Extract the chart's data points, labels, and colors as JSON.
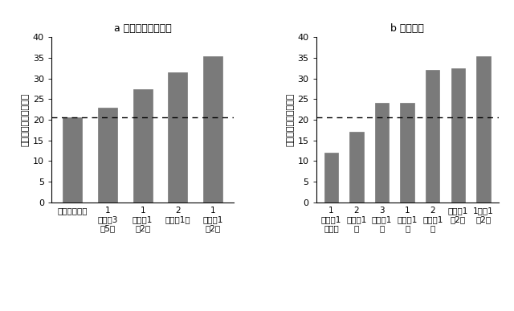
{
  "chart_a": {
    "title": "a トレーニング頻度",
    "values": [
      20.5,
      23.0,
      27.5,
      31.5,
      35.5
    ],
    "labels": [
      "ほとんど毎日",
      "1\n週間に3\n～5回",
      "1\n週間に1\n～2回",
      "2\n週間に1回",
      "1\nカ月に1\n～2回"
    ]
  },
  "chart_b": {
    "title": "b 登山頻度",
    "values": [
      12.0,
      17.0,
      24.0,
      24.0,
      32.0,
      32.5,
      35.5
    ],
    "labels": [
      "1\n週間に1\n回以上",
      "2\n週間に1\n回",
      "3\n週間に1\n回",
      "1\nカ月に1\n回",
      "2\nカ月に1\n回",
      "半年に1\n～2回",
      "1年に1\n～2回"
    ]
  },
  "bar_color": "#7a7a7a",
  "dashed_line_y": 20.5,
  "ylim": [
    0,
    40
  ],
  "yticks": [
    0,
    5,
    10,
    15,
    20,
    25,
    30,
    35,
    40
  ],
  "ylabel": "トラブル発生率（％）",
  "background_color": "#ffffff",
  "bar_width": 0.55,
  "figsize": [
    6.4,
    3.87
  ],
  "dpi": 100
}
